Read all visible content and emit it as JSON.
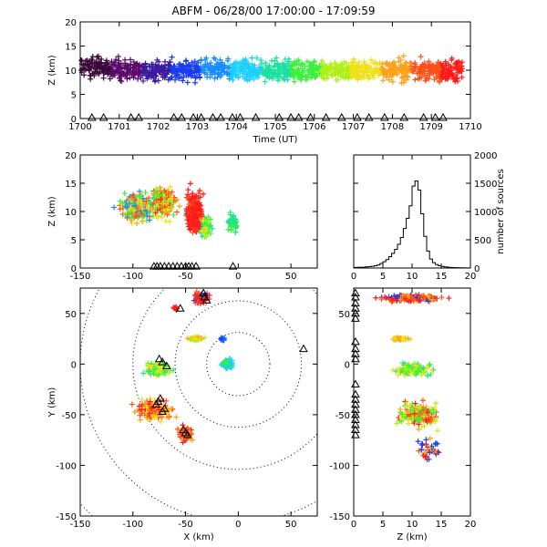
{
  "title": "ABFM - 06/28/00 17:00:00 - 17:09:59",
  "colors": {
    "time_scale": [
      "#3a0a3a",
      "#5a0a6a",
      "#3c1aa0",
      "#1a3cf0",
      "#1a8cff",
      "#1ad0ff",
      "#1ae0a0",
      "#3af03a",
      "#b0f01a",
      "#f0e01a",
      "#ffa01a",
      "#ff501a",
      "#ff1a1a"
    ],
    "range_rings": "#000000",
    "triangles": "#000000"
  },
  "chart_data": [
    {
      "id": "time-height",
      "type": "scatter",
      "title": "",
      "xlabel": "Time (UT)",
      "ylabel": "Z (km)",
      "xlim": [
        1700,
        1710
      ],
      "ylim": [
        0,
        20
      ],
      "x_ticks": [
        "1700",
        "1701",
        "1702",
        "1703",
        "1704",
        "1705",
        "1706",
        "1707",
        "1708",
        "1709",
        "1710"
      ],
      "y_ticks": [
        "0",
        "5",
        "10",
        "15",
        "20"
      ],
      "series": [
        {
          "time_start": 1700.0,
          "time_end": 1701.0,
          "z_center": 10.5,
          "z_spread": 3.5
        },
        {
          "time_start": 1701.0,
          "time_end": 1702.0,
          "z_center": 10.0,
          "z_spread": 3.5
        },
        {
          "time_start": 1702.0,
          "time_end": 1703.0,
          "z_center": 10.0,
          "z_spread": 3.5
        },
        {
          "time_start": 1703.0,
          "time_end": 1704.0,
          "z_center": 10.0,
          "z_spread": 3.5
        },
        {
          "time_start": 1704.0,
          "time_end": 1705.0,
          "z_center": 10.0,
          "z_spread": 3.5
        },
        {
          "time_start": 1705.0,
          "time_end": 1706.0,
          "z_center": 10.0,
          "z_spread": 3.5
        },
        {
          "time_start": 1706.0,
          "time_end": 1707.0,
          "z_center": 10.0,
          "z_spread": 3.5
        },
        {
          "time_start": 1707.0,
          "time_end": 1708.0,
          "z_center": 10.0,
          "z_spread": 3.5
        },
        {
          "time_start": 1708.0,
          "time_end": 1709.0,
          "z_center": 10.0,
          "z_spread": 3.5
        },
        {
          "time_start": 1709.0,
          "time_end": 1709.8,
          "z_center": 10.0,
          "z_spread": 3.5
        }
      ],
      "triangle_times": [
        1700.3,
        1700.6,
        1701.3,
        1701.5,
        1702.4,
        1702.6,
        1702.9,
        1703.1,
        1703.4,
        1703.6,
        1703.9,
        1704.1,
        1704.5,
        1705.1,
        1705.4,
        1705.6,
        1705.9,
        1706.3,
        1706.7,
        1707.1,
        1707.4,
        1707.8,
        1708.3,
        1708.8,
        1709.1,
        1709.3
      ]
    },
    {
      "id": "x-z",
      "type": "scatter",
      "title": "",
      "xlabel": "",
      "ylabel": "Z (km)",
      "xlim": [
        -150,
        75
      ],
      "ylim": [
        0,
        20
      ],
      "x_ticks": [
        "-150",
        "-100",
        "-50",
        "0",
        "50"
      ],
      "y_ticks": [
        "0",
        "5",
        "10",
        "15",
        "20"
      ],
      "clusters": [
        {
          "x": -95,
          "z": 10.5,
          "dx": 25,
          "dz": 4,
          "color_idx": [
            4,
            7,
            9,
            10,
            11
          ],
          "count": 220
        },
        {
          "x": -70,
          "z": 11.5,
          "dx": 18,
          "dz": 4.5,
          "color_idx": [
            7,
            8,
            9,
            10,
            11,
            12
          ],
          "count": 180
        },
        {
          "x": -42,
          "z": 10.0,
          "dx": 12,
          "dz": 6,
          "color_idx": [
            12,
            12,
            12,
            11
          ],
          "count": 240
        },
        {
          "x": -30,
          "z": 7.0,
          "dx": 8,
          "dz": 3,
          "color_idx": [
            6,
            7,
            8,
            9
          ],
          "count": 60
        },
        {
          "x": -5,
          "z": 8.0,
          "dx": 7,
          "dz": 2.5,
          "color_idx": [
            6,
            7
          ],
          "count": 50
        }
      ],
      "triangle_x": [
        -80,
        -77,
        -74,
        -70,
        -66,
        -62,
        -58,
        -54,
        -50,
        -47,
        -44,
        -40,
        -5
      ]
    },
    {
      "id": "histogram",
      "type": "bar",
      "title": "",
      "xlabel": "",
      "ylabel": "number of sources",
      "xlim": [
        0,
        20
      ],
      "ylim": [
        0,
        2000
      ],
      "x_ticks": [
        "0",
        "5",
        "10",
        "15",
        "20"
      ],
      "y_ticks": [
        "0",
        "500",
        "1000",
        "1500",
        "2000"
      ],
      "bin_edges": [
        0,
        0.5,
        1,
        1.5,
        2,
        2.5,
        3,
        3.5,
        4,
        4.5,
        5,
        5.5,
        6,
        6.5,
        7,
        7.5,
        8,
        8.5,
        9,
        9.5,
        10,
        10.5,
        11,
        11.5,
        12,
        12.5,
        13,
        13.5,
        14,
        14.5,
        15,
        15.5,
        16,
        16.5,
        17,
        17.5,
        18,
        18.5,
        19,
        19.5,
        20
      ],
      "values": [
        10,
        12,
        15,
        15,
        20,
        25,
        30,
        40,
        55,
        80,
        110,
        150,
        200,
        260,
        330,
        420,
        540,
        700,
        880,
        1100,
        1450,
        1540,
        1380,
        960,
        560,
        300,
        160,
        95,
        60,
        40,
        28,
        20,
        14,
        10,
        8,
        6,
        5,
        4,
        3,
        2
      ]
    },
    {
      "id": "plan",
      "type": "scatter",
      "title": "",
      "xlabel": "X (km)",
      "ylabel": "Y (km)",
      "xlim": [
        -150,
        75
      ],
      "ylim": [
        -150,
        75
      ],
      "x_ticks": [
        "-150",
        "-100",
        "-50",
        "0",
        "50"
      ],
      "y_ticks": [
        "-150",
        "-100",
        "-50",
        "0",
        "50"
      ],
      "ring_radii": [
        30,
        60,
        100,
        150,
        200
      ],
      "clusters": [
        {
          "x": -35,
          "y": 65,
          "dx": 10,
          "dy": 8,
          "color_idx": [
            12,
            12,
            11,
            3
          ],
          "count": 120
        },
        {
          "x": -40,
          "y": 25,
          "dx": 12,
          "dy": 3,
          "color_idx": [
            8,
            9,
            10
          ],
          "count": 50
        },
        {
          "x": -75,
          "y": -5,
          "dx": 22,
          "dy": 10,
          "color_idx": [
            7,
            8,
            9,
            6
          ],
          "count": 120
        },
        {
          "x": -80,
          "y": -45,
          "dx": 25,
          "dy": 15,
          "color_idx": [
            9,
            10,
            11,
            12
          ],
          "count": 160
        },
        {
          "x": -50,
          "y": -70,
          "dx": 10,
          "dy": 12,
          "color_idx": [
            10,
            11,
            12
          ],
          "count": 80
        },
        {
          "x": -10,
          "y": 0,
          "dx": 8,
          "dy": 8,
          "color_idx": [
            5,
            6,
            7
          ],
          "count": 60
        },
        {
          "x": -15,
          "y": 25,
          "dx": 3,
          "dy": 3,
          "color_idx": [
            3,
            4
          ],
          "count": 12
        },
        {
          "x": -60,
          "y": 55,
          "dx": 5,
          "dy": 3,
          "color_idx": [
            12
          ],
          "count": 10
        }
      ],
      "triangles": [
        [
          -33,
          70
        ],
        [
          -32,
          66
        ],
        [
          -30,
          63
        ],
        [
          -75,
          5
        ],
        [
          -72,
          2
        ],
        [
          -68,
          -2
        ],
        [
          -78,
          -40
        ],
        [
          -76,
          -37
        ],
        [
          -74,
          -34
        ],
        [
          -70,
          -44
        ],
        [
          -72,
          -47
        ],
        [
          -52,
          -65
        ],
        [
          -50,
          -68
        ],
        [
          -48,
          -70
        ],
        [
          -55,
          55
        ],
        [
          62,
          15
        ]
      ]
    },
    {
      "id": "z-y",
      "type": "scatter",
      "title": "",
      "xlabel": "Z (km)",
      "ylabel": "",
      "xlim": [
        0,
        20
      ],
      "ylim": [
        -150,
        75
      ],
      "x_ticks": [
        "0",
        "5",
        "10",
        "15",
        "20"
      ],
      "y_ticks": [
        "-150",
        "-100",
        "-50",
        "0",
        "50"
      ],
      "clusters": [
        {
          "z": 10,
          "y": 65,
          "dz": 8,
          "dy": 5,
          "color_idx": [
            12,
            12,
            11,
            3,
            10
          ],
          "count": 200
        },
        {
          "z": 8,
          "y": 25,
          "dz": 2.5,
          "dy": 2,
          "color_idx": [
            9,
            10
          ],
          "count": 40
        },
        {
          "z": 10,
          "y": -5,
          "dz": 5,
          "dy": 10,
          "color_idx": [
            6,
            7,
            8,
            9
          ],
          "count": 120
        },
        {
          "z": 11,
          "y": -50,
          "dz": 5,
          "dy": 18,
          "color_idx": [
            7,
            8,
            9,
            10,
            11,
            12
          ],
          "count": 200
        },
        {
          "z": 13,
          "y": -85,
          "dz": 3,
          "dy": 15,
          "color_idx": [
            10,
            11,
            12,
            3
          ],
          "count": 40
        }
      ],
      "triangle_y": [
        70,
        66,
        60,
        55,
        50,
        45,
        22,
        15,
        10,
        5,
        -20,
        -30,
        -35,
        -40,
        -45,
        -50,
        -55,
        -60,
        -65,
        -70
      ]
    }
  ]
}
